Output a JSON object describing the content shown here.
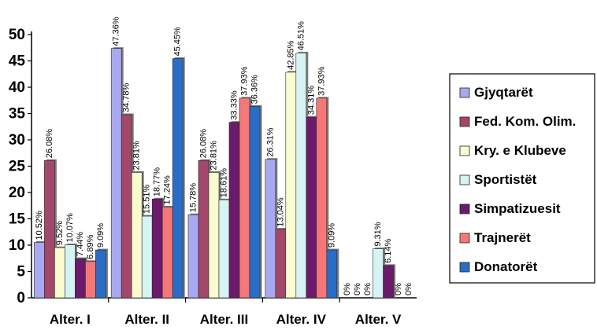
{
  "chart_data": {
    "type": "bar",
    "categories": [
      "Alter. I",
      "Alter. II",
      "Alter. III",
      "Alter. IV",
      "Alter. V"
    ],
    "ylim": [
      0,
      50
    ],
    "yticks": [
      0,
      5,
      10,
      15,
      20,
      25,
      30,
      35,
      40,
      45,
      50
    ],
    "grid": false,
    "legend_position": "right",
    "series": [
      {
        "name": "Gjyqtarët",
        "color": "#a9a9f2",
        "values": [
          10.52,
          47.36,
          15.78,
          26.31,
          0
        ],
        "labels": [
          "10.52%",
          "47.36%",
          "15.78%",
          "26.31%",
          "0%"
        ]
      },
      {
        "name": "Fed. Kom. Olim.",
        "color": "#a2486a",
        "values": [
          26.08,
          34.78,
          26.08,
          13.04,
          0
        ],
        "labels": [
          "26.08%",
          "34.78%",
          "26.08%",
          "13.04%",
          "0%"
        ]
      },
      {
        "name": "Kry. e Klubeve",
        "color": "#fbfbd0",
        "values": [
          9.52,
          23.81,
          23.81,
          42.85,
          0
        ],
        "labels": [
          "9.52%",
          "23.81%",
          "23.81%",
          "42.85%",
          "0%"
        ]
      },
      {
        "name": "Sportistët",
        "color": "#d6f4f4",
        "values": [
          10.07,
          15.51,
          18.61,
          46.51,
          9.31
        ],
        "labels": [
          "10.07%",
          "15.51%",
          "18.61%",
          "46.51%",
          "9.31%"
        ]
      },
      {
        "name": "Simpatizuesit",
        "color": "#6c1a6c",
        "values": [
          7.44,
          18.77,
          33.33,
          34.31,
          6.14
        ],
        "labels": [
          "7.44%",
          "18.77%",
          "33.33%",
          "34.31%",
          "6.14%"
        ]
      },
      {
        "name": "Trajnerët",
        "color": "#f47878",
        "values": [
          6.89,
          17.24,
          37.93,
          37.93,
          0
        ],
        "labels": [
          "6.89%",
          "17.24%",
          "37.93%",
          "37.93%",
          "0%"
        ]
      },
      {
        "name": "Donatorët",
        "color": "#2a6dc6",
        "values": [
          9.09,
          45.45,
          36.36,
          9.09,
          0
        ],
        "labels": [
          "9.09%",
          "45.45%",
          "36.36%",
          "9.09%",
          "0%"
        ]
      }
    ]
  }
}
